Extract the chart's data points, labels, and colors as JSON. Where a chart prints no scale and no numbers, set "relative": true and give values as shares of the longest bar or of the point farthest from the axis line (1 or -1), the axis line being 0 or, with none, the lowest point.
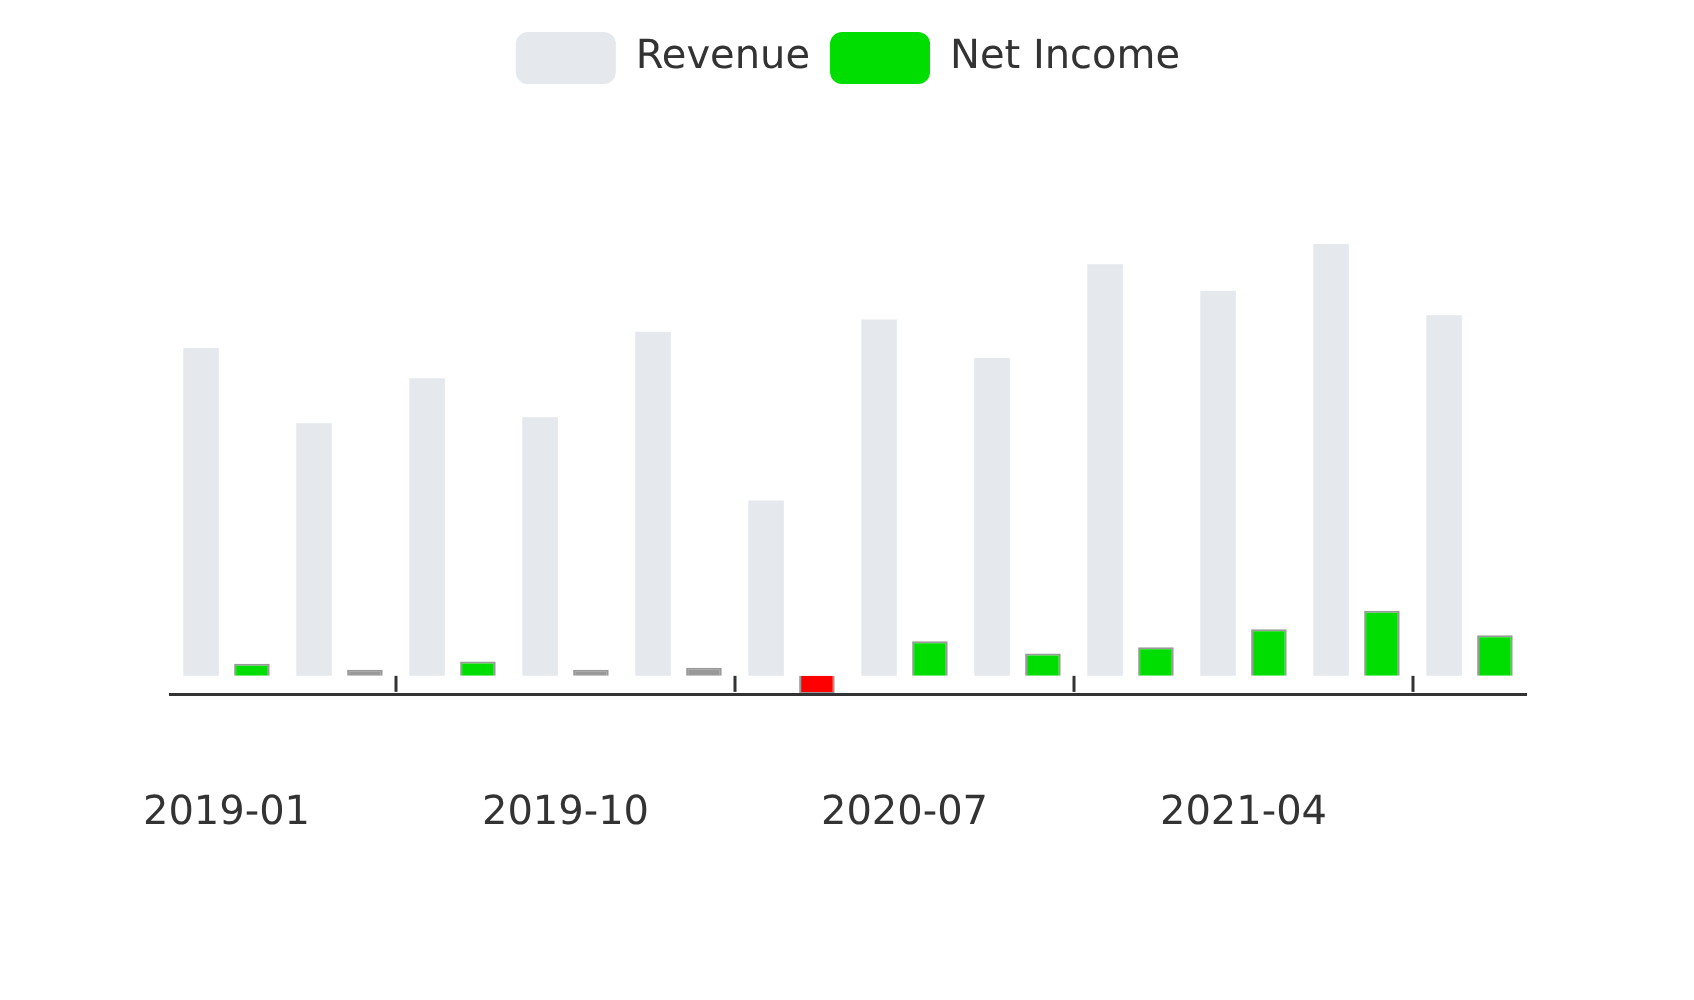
{
  "chart_data": {
    "type": "bar",
    "relative": true,
    "legend": "top",
    "categories": [
      "2019-01",
      null,
      null,
      "2019-10",
      null,
      null,
      "2020-07",
      null,
      null,
      "2021-04",
      null,
      null
    ],
    "series": [
      {
        "name": "Revenue",
        "color": "#e5e9ed",
        "values": [
          0.759,
          0.585,
          0.689,
          0.599,
          0.797,
          0.406,
          0.825,
          0.736,
          0.953,
          0.892,
          1,
          0.835
        ]
      },
      {
        "name": "Net Income",
        "color": "#00dd00",
        "colors": [
          "#00dd00",
          "#999999",
          "#00dd00",
          "#999999",
          "#999999",
          "#ff0000",
          "#00dd00",
          "#00dd00",
          "#00dd00",
          "#00dd00",
          "#00dd00",
          "#00dd00"
        ],
        "values": [
          0.028,
          0.014,
          0.033,
          0.014,
          0.019,
          -0.042,
          0.08,
          0.052,
          0.066,
          0.108,
          0.151,
          0.094
        ]
      }
    ]
  }
}
